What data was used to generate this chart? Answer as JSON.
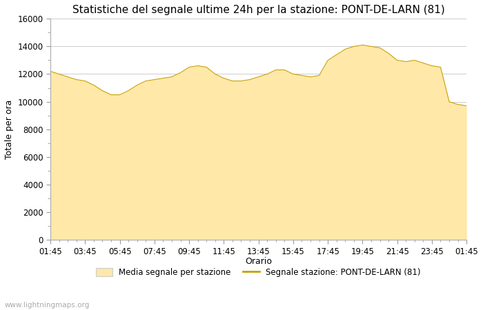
{
  "title": "Statistiche del segnale ultime 24h per la stazione: PONT-DE-LARN (81)",
  "xlabel": "Orario",
  "ylabel": "Totale per ora",
  "xlabels": [
    "01:45",
    "03:45",
    "05:45",
    "07:45",
    "09:45",
    "11:45",
    "13:45",
    "15:45",
    "17:45",
    "19:45",
    "21:45",
    "23:45",
    "01:45"
  ],
  "ylim": [
    0,
    16000
  ],
  "yticks": [
    0,
    2000,
    4000,
    6000,
    8000,
    10000,
    12000,
    14000,
    16000
  ],
  "fill_color": "#FFE8A8",
  "line_color": "#C8A000",
  "background_color": "#ffffff",
  "plot_bg_color": "#ffffff",
  "grid_color": "#cccccc",
  "watermark": "www.lightningmaps.org",
  "legend_fill_label": "Media segnale per stazione",
  "legend_line_label": "Segnale stazione: PONT-DE-LARN (81)",
  "x_values": [
    0,
    1,
    2,
    3,
    4,
    5,
    6,
    7,
    8,
    9,
    10,
    11,
    12,
    13,
    14,
    15,
    16,
    17,
    18,
    19,
    20,
    21,
    22,
    23,
    24,
    25,
    26,
    27,
    28,
    29,
    30,
    31,
    32,
    33,
    34,
    35,
    36,
    37,
    38,
    39,
    40,
    41,
    42,
    43,
    44,
    45,
    46,
    47,
    48
  ],
  "y_values": [
    12200,
    12000,
    11800,
    11600,
    11500,
    11200,
    10800,
    10500,
    10500,
    10800,
    11200,
    11500,
    11600,
    11700,
    11800,
    12100,
    12500,
    12600,
    12500,
    12000,
    11700,
    11500,
    11500,
    11600,
    11800,
    12000,
    12300,
    12300,
    12000,
    11900,
    11800,
    11900,
    13000,
    13400,
    13800,
    14000,
    14100,
    14000,
    13900,
    13500,
    13000,
    12900,
    13000,
    12800,
    12600,
    12500,
    10000,
    9800,
    9700
  ],
  "title_fontsize": 11,
  "axis_fontsize": 9,
  "tick_fontsize": 8.5,
  "watermark_fontsize": 7.5
}
